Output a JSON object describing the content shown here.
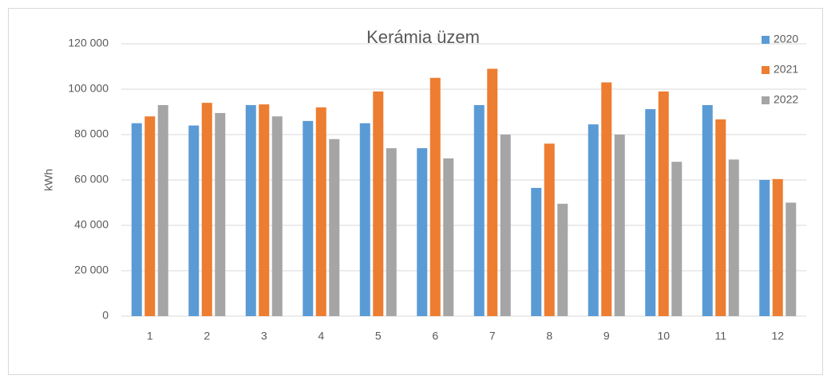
{
  "chart_data": {
    "type": "bar",
    "title": "Kerámia üzem",
    "y_label": "kWh",
    "categories": [
      "1",
      "2",
      "3",
      "4",
      "5",
      "6",
      "7",
      "8",
      "9",
      "10",
      "11",
      "12"
    ],
    "series": [
      {
        "name": "2020",
        "color": "#5b9bd5",
        "values": [
          85000,
          84000,
          93000,
          86000,
          85000,
          74000,
          93000,
          56500,
          84500,
          91200,
          93000,
          60000
        ]
      },
      {
        "name": "2021",
        "color": "#ed7d31",
        "values": [
          88000,
          94000,
          93300,
          92000,
          99000,
          105000,
          109000,
          76000,
          103000,
          99000,
          86700,
          60400
        ]
      },
      {
        "name": "2022",
        "color": "#a5a5a5",
        "values": [
          93000,
          89500,
          88000,
          78000,
          74000,
          69500,
          80000,
          49500,
          80000,
          68000,
          69000,
          50000
        ]
      }
    ],
    "ylim": [
      0,
      120000
    ],
    "yticks": [
      0,
      {
        "value": 20000,
        "label": "20 000"
      },
      {
        "value": 40000,
        "label": "40 000"
      },
      {
        "value": 60000,
        "label": "60 000"
      },
      {
        "value": 80000,
        "label": "80 000"
      },
      {
        "value": 100000,
        "label": "100 000"
      },
      {
        "value": 120000,
        "label": "120 000"
      }
    ],
    "grid": true,
    "legend": "top-right"
  }
}
